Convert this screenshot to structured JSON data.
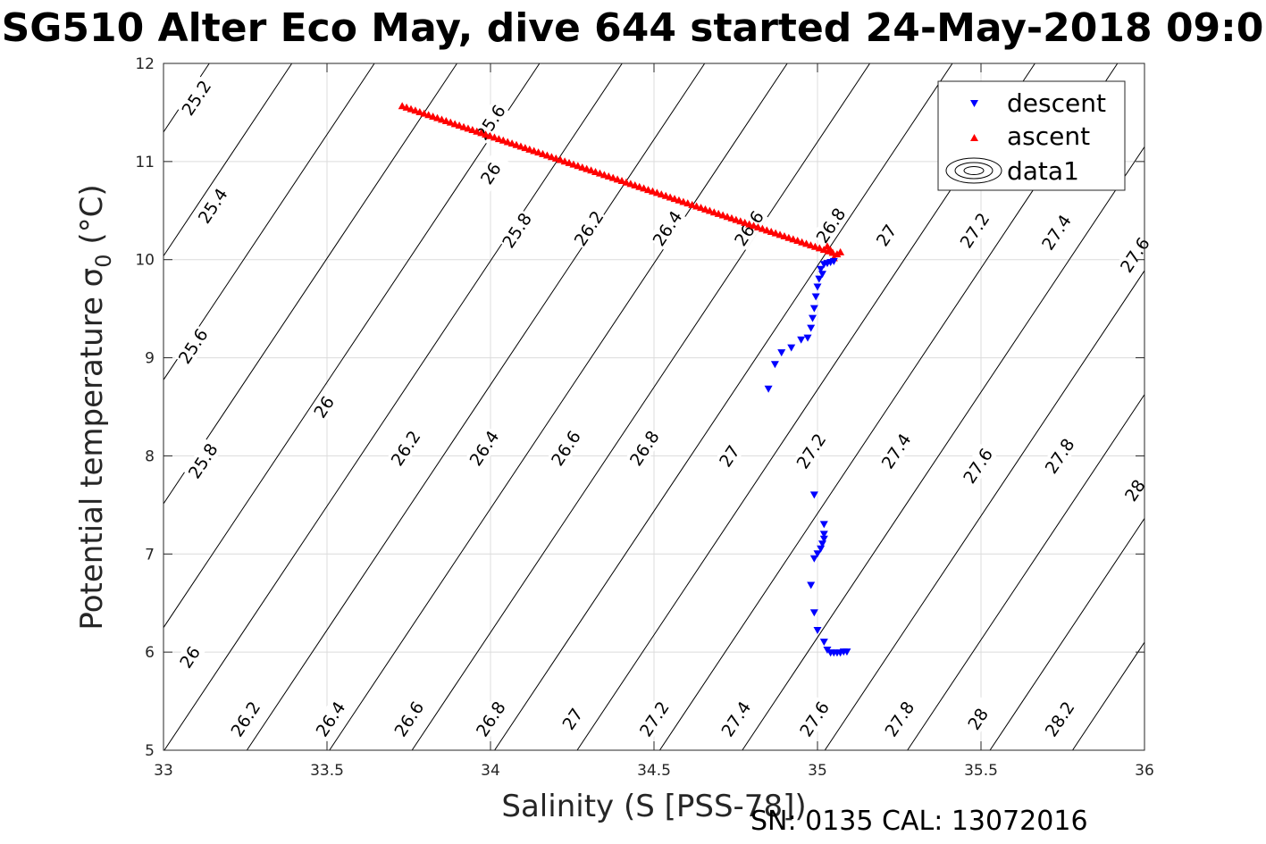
{
  "figure": {
    "title": "SG510 Alter Eco May, dive 644 started 24-May-2018 09:0",
    "footer": "SN: 0135  CAL: 13072016"
  },
  "chart_data": {
    "type": "scatter",
    "xlabel": "Salinity (S [PSS-78])",
    "ylabel_prefix": "Potential temperature ",
    "ylabel_symbol": "σ",
    "ylabel_sub": "0",
    "ylabel_suffix": " (°C)",
    "xlim": [
      33,
      36
    ],
    "ylim": [
      5,
      12
    ],
    "xticks": [
      33,
      33.5,
      34,
      34.5,
      35,
      35.5,
      36
    ],
    "xtick_labels": [
      "33",
      "33.5",
      "34",
      "34.5",
      "35",
      "35.5",
      "36"
    ],
    "yticks": [
      5,
      6,
      7,
      8,
      9,
      10,
      11,
      12
    ],
    "ytick_labels": [
      "5",
      "6",
      "7",
      "8",
      "9",
      "10",
      "11",
      "12"
    ],
    "grid": true,
    "legend_position": "top-right",
    "legend": [
      {
        "label": "descent",
        "marker": "triangle-down",
        "color": "#0000ff"
      },
      {
        "label": "ascent",
        "marker": "triangle-up",
        "color": "#ff0000"
      },
      {
        "label": "data1",
        "marker": "contour",
        "color": "#000000"
      }
    ],
    "contour_lines": {
      "description": "potential density anomaly isopycnals",
      "levels": [
        "25.2",
        "25.4",
        "25.6",
        "25.8",
        "26",
        "26.2",
        "26.4",
        "26.6",
        "26.8",
        "27",
        "27.2",
        "27.4",
        "27.6",
        "27.8",
        "28",
        "28.2"
      ],
      "slope_temp_per_psu": 5.0,
      "labels": [
        {
          "text": "25.2",
          "s": 33.1,
          "t": 11.65
        },
        {
          "text": "25.6",
          "s": 34.0,
          "t": 11.4
        },
        {
          "text": "25.4",
          "s": 33.15,
          "t": 10.55
        },
        {
          "text": "25.8",
          "s": 34.08,
          "t": 10.3
        },
        {
          "text": "26",
          "s": 34.0,
          "t": 10.88
        },
        {
          "text": "26.2",
          "s": 34.3,
          "t": 10.32
        },
        {
          "text": "26.4",
          "s": 34.54,
          "t": 10.32
        },
        {
          "text": "26.6",
          "s": 34.79,
          "t": 10.32
        },
        {
          "text": "26.8",
          "s": 35.04,
          "t": 10.35
        },
        {
          "text": "27",
          "s": 35.21,
          "t": 10.25
        },
        {
          "text": "27.2",
          "s": 35.48,
          "t": 10.3
        },
        {
          "text": "27.4",
          "s": 35.73,
          "t": 10.28
        },
        {
          "text": "27.6",
          "s": 35.97,
          "t": 10.05
        },
        {
          "text": "25.6",
          "s": 33.09,
          "t": 9.12
        },
        {
          "text": "26",
          "s": 33.49,
          "t": 8.5
        },
        {
          "text": "26.2",
          "s": 33.74,
          "t": 8.08
        },
        {
          "text": "26.4",
          "s": 33.98,
          "t": 8.08
        },
        {
          "text": "26.6",
          "s": 34.23,
          "t": 8.08
        },
        {
          "text": "26.8",
          "s": 34.47,
          "t": 8.08
        },
        {
          "text": "27",
          "s": 34.73,
          "t": 8.0
        },
        {
          "text": "27.2",
          "s": 34.98,
          "t": 8.05
        },
        {
          "text": "27.4",
          "s": 35.24,
          "t": 8.05
        },
        {
          "text": "27.6",
          "s": 35.49,
          "t": 7.9
        },
        {
          "text": "27.8",
          "s": 35.74,
          "t": 8.0
        },
        {
          "text": "28",
          "s": 35.97,
          "t": 7.65
        },
        {
          "text": "25.8",
          "s": 33.12,
          "t": 7.95
        },
        {
          "text": "26",
          "s": 33.08,
          "t": 5.95
        },
        {
          "text": "26.2",
          "s": 33.25,
          "t": 5.32
        },
        {
          "text": "26.4",
          "s": 33.51,
          "t": 5.32
        },
        {
          "text": "26.6",
          "s": 33.75,
          "t": 5.32
        },
        {
          "text": "26.8",
          "s": 34.0,
          "t": 5.32
        },
        {
          "text": "27",
          "s": 34.25,
          "t": 5.32
        },
        {
          "text": "27.2",
          "s": 34.5,
          "t": 5.32
        },
        {
          "text": "27.4",
          "s": 34.75,
          "t": 5.32
        },
        {
          "text": "27.6",
          "s": 34.99,
          "t": 5.32
        },
        {
          "text": "27.8",
          "s": 35.25,
          "t": 5.32
        },
        {
          "text": "28",
          "s": 35.49,
          "t": 5.32
        },
        {
          "text": "28.2",
          "s": 35.74,
          "t": 5.32
        }
      ]
    },
    "series": [
      {
        "name": "descent",
        "marker": "triangle-down",
        "color": "#0000ff",
        "x": [
          35.05,
          35.04,
          35.03,
          35.02,
          35.01,
          35.015,
          35.005,
          35.0,
          34.995,
          34.99,
          34.985,
          34.98,
          34.97,
          34.95,
          34.92,
          34.89,
          34.87,
          34.85,
          34.99,
          35.02,
          35.02,
          35.02,
          35.015,
          35.01,
          35.0,
          34.99,
          34.98,
          34.99,
          35.0,
          35.02,
          35.03,
          35.04,
          35.05,
          35.06,
          35.07,
          35.08,
          35.09
        ],
        "y": [
          9.98,
          9.97,
          9.96,
          9.95,
          9.9,
          9.85,
          9.8,
          9.72,
          9.62,
          9.5,
          9.4,
          9.3,
          9.2,
          9.18,
          9.1,
          9.05,
          8.93,
          8.68,
          7.6,
          7.3,
          7.2,
          7.15,
          7.1,
          7.05,
          7.0,
          6.95,
          6.68,
          6.4,
          6.22,
          6.1,
          6.02,
          5.99,
          5.99,
          5.99,
          5.99,
          6.0,
          6.0
        ]
      },
      {
        "name": "ascent",
        "marker": "triangle-up",
        "color": "#ff0000",
        "x_start": 33.73,
        "y_start": 11.57,
        "x_end": 35.06,
        "y_end": 10.06,
        "count": 100
      }
    ]
  }
}
